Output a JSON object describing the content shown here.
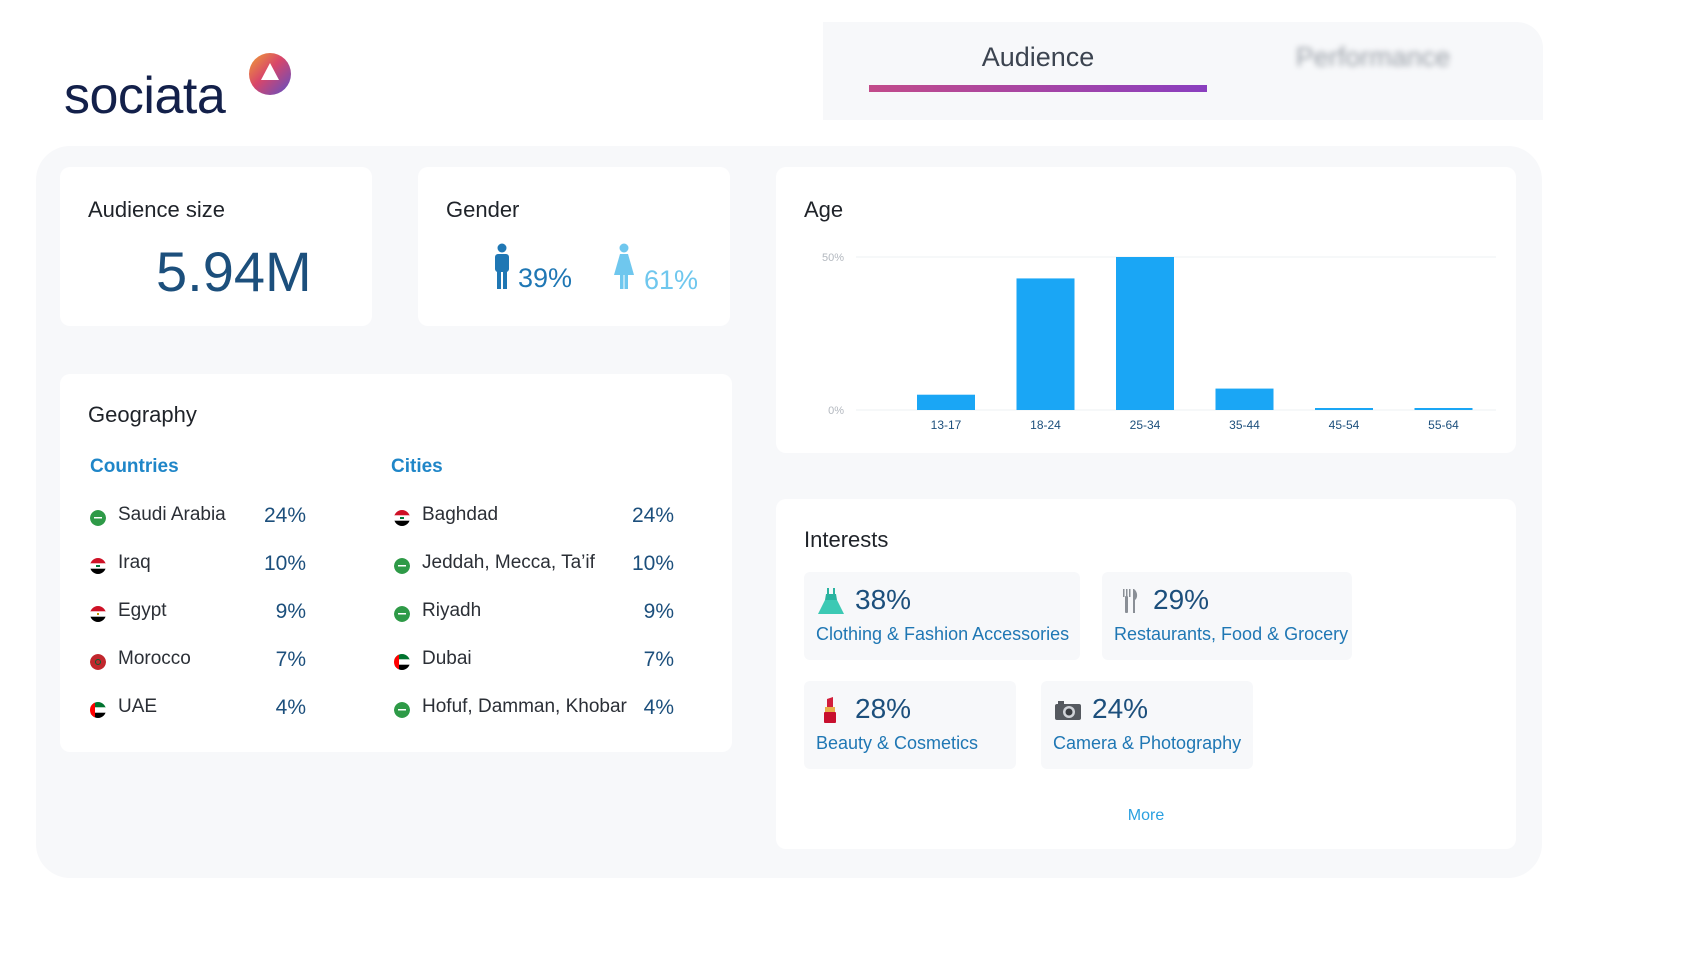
{
  "brand": {
    "name": "sociata"
  },
  "tabs": [
    {
      "label": "Audience",
      "active": true
    },
    {
      "label": "Performance",
      "active": false
    }
  ],
  "audience_size": {
    "title": "Audience size",
    "value": "5.94M"
  },
  "gender": {
    "title": "Gender",
    "male_percent": "39%",
    "female_percent": "61%",
    "male_color": "#1f77b4",
    "female_color": "#6fc7ee"
  },
  "age": {
    "title": "Age",
    "chart_data": {
      "type": "bar",
      "categories": [
        "13-17",
        "18-24",
        "25-34",
        "35-44",
        "45-54",
        "55-64"
      ],
      "values": [
        5,
        43,
        50,
        7,
        0.5,
        0.5
      ],
      "ylim": [
        0,
        50
      ],
      "y_tick_labels": [
        "0%",
        "50%"
      ],
      "bar_color": "#1aa6f5",
      "grid": true
    }
  },
  "geography": {
    "title": "Geography",
    "countries_label": "Countries",
    "cities_label": "Cities",
    "countries": [
      {
        "name": "Saudi Arabia",
        "pct": "24%",
        "flag": "saudi"
      },
      {
        "name": "Iraq",
        "pct": "10%",
        "flag": "iraq"
      },
      {
        "name": "Egypt",
        "pct": "9%",
        "flag": "egypt"
      },
      {
        "name": "Morocco",
        "pct": "7%",
        "flag": "morocco"
      },
      {
        "name": "UAE",
        "pct": "4%",
        "flag": "uae"
      }
    ],
    "cities": [
      {
        "name": "Baghdad",
        "pct": "24%",
        "flag": "iraq"
      },
      {
        "name": "Jeddah, Mecca, Ta’if",
        "pct": "10%",
        "flag": "saudi"
      },
      {
        "name": "Riyadh",
        "pct": "9%",
        "flag": "saudi"
      },
      {
        "name": "Dubai",
        "pct": "7%",
        "flag": "uae"
      },
      {
        "name": "Hofuf, Damman, Khobar",
        "pct": "4%",
        "flag": "saudi"
      }
    ]
  },
  "interests": {
    "title": "Interests",
    "items": [
      {
        "pct": "38%",
        "label": "Clothing & Fashion Accessories",
        "icon": "dress-icon"
      },
      {
        "pct": "29%",
        "label": "Restaurants, Food & Grocery",
        "icon": "fork-knife-icon"
      },
      {
        "pct": "28%",
        "label": "Beauty & Cosmetics",
        "icon": "lipstick-icon"
      },
      {
        "pct": "24%",
        "label": "Camera & Photography",
        "icon": "camera-icon"
      }
    ],
    "more_label": "More"
  }
}
